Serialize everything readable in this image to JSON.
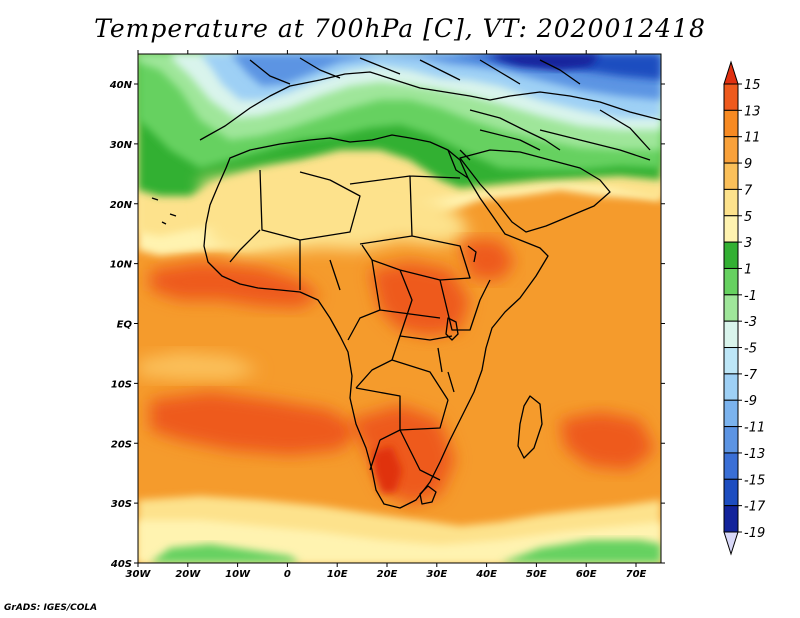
{
  "title": "Temperature at 700hPa [C], VT: 2020012418",
  "credit": "GrADS: IGES/COLA",
  "lat_ticks": [
    "40N",
    "30N",
    "20N",
    "10N",
    "EQ",
    "10S",
    "20S",
    "30S",
    "40S"
  ],
  "lon_ticks": [
    "30W",
    "20W",
    "10W",
    "0",
    "10E",
    "20E",
    "30E",
    "40E",
    "50E",
    "60E",
    "70E"
  ],
  "colorbar": {
    "labels": [
      "15",
      "13",
      "11",
      "9",
      "7",
      "5",
      "3",
      "1",
      "-1",
      "-3",
      "-5",
      "-7",
      "-9",
      "-11",
      "-13",
      "-15",
      "-17",
      "-19"
    ],
    "colors": [
      "#e03010",
      "#ee5a1d",
      "#f78a22",
      "#f9a13a",
      "#fbc05a",
      "#fde28c",
      "#fff3b0",
      "#33b033",
      "#66d160",
      "#9fe69a",
      "#d9f4ec",
      "#bde6f7",
      "#9ed0f5",
      "#7bb3ee",
      "#5c94e3",
      "#3a6fd6",
      "#1d4dc0",
      "#12239b",
      "#d8d8f8"
    ]
  },
  "map_colors": {
    "ocean_warm": "#f59b2c",
    "land_warm": "#f7a23a",
    "hot": "#ee5a1d",
    "hottest": "#e03010",
    "yellow": "#fde28c",
    "cream": "#fff3b0",
    "green_dark": "#33b033",
    "green": "#66d160",
    "green_light": "#9fe69a",
    "cyan": "#d9f4ec",
    "blue_light": "#9ed0f5",
    "blue": "#5c94e3",
    "blue_dark": "#1d4dc0",
    "navy": "#12239b"
  }
}
